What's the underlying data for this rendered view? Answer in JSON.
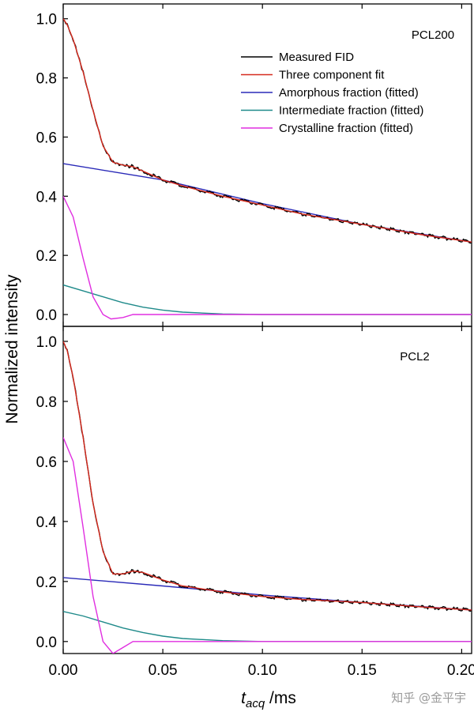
{
  "chart_data": {
    "type": "line",
    "ylabel": "Normalized intensity",
    "xlabel": {
      "main": "t",
      "sub": "acq",
      "unit": " /ms"
    },
    "xlim": [
      0.0,
      0.205
    ],
    "ylim": [
      -0.04,
      1.05
    ],
    "xticks": [
      "0.00",
      "0.05",
      "0.10",
      "0.15",
      "0.20"
    ],
    "yticks": [
      "0.0",
      "0.2",
      "0.4",
      "0.6",
      "0.8",
      "1.0"
    ],
    "legend": {
      "placement": "top-right of upper panel",
      "entries": [
        {
          "label": "Measured FID",
          "color": "#000000"
        },
        {
          "label": "Three component fit",
          "color": "#d62a1e"
        },
        {
          "label": "Amorphous fraction (fitted)",
          "color": "#2a2ab8"
        },
        {
          "label": "Intermediate fraction (fitted)",
          "color": "#1f8a8a"
        },
        {
          "label": "Crystalline fraction (fitted)",
          "color": "#e02ee0"
        }
      ]
    },
    "panels": [
      {
        "label": "PCL200",
        "series": [
          {
            "name": "Measured FID",
            "color": "#000000",
            "x": [
              0.0,
              0.002,
              0.005,
              0.01,
              0.015,
              0.02,
              0.025,
              0.03,
              0.035,
              0.04,
              0.05,
              0.06,
              0.08,
              0.1,
              0.12,
              0.15,
              0.18,
              0.205
            ],
            "y": [
              1.0,
              0.98,
              0.93,
              0.82,
              0.69,
              0.57,
              0.515,
              0.505,
              0.5,
              0.485,
              0.455,
              0.435,
              0.4,
              0.37,
              0.34,
              0.305,
              0.27,
              0.245
            ]
          },
          {
            "name": "Three component fit",
            "color": "#d62a1e",
            "x": [
              0.0,
              0.002,
              0.005,
              0.01,
              0.015,
              0.02,
              0.025,
              0.03,
              0.035,
              0.04,
              0.05,
              0.06,
              0.08,
              0.1,
              0.12,
              0.15,
              0.18,
              0.205
            ],
            "y": [
              1.0,
              0.98,
              0.93,
              0.82,
              0.69,
              0.57,
              0.515,
              0.505,
              0.5,
              0.485,
              0.455,
              0.435,
              0.4,
              0.37,
              0.34,
              0.305,
              0.27,
              0.245
            ]
          },
          {
            "name": "Amorphous fraction (fitted)",
            "color": "#2a2ab8",
            "x": [
              0.0,
              0.05,
              0.1,
              0.15,
              0.205
            ],
            "y": [
              0.51,
              0.455,
              0.375,
              0.305,
              0.245
            ]
          },
          {
            "name": "Intermediate fraction (fitted)",
            "color": "#1f8a8a",
            "x": [
              0.0,
              0.01,
              0.02,
              0.03,
              0.04,
              0.05,
              0.06,
              0.08,
              0.1,
              0.205
            ],
            "y": [
              0.1,
              0.08,
              0.06,
              0.04,
              0.025,
              0.015,
              0.008,
              0.002,
              0.0,
              0.0
            ]
          },
          {
            "name": "Crystalline fraction (fitted)",
            "color": "#e02ee0",
            "x": [
              0.0,
              0.005,
              0.01,
              0.015,
              0.02,
              0.024,
              0.03,
              0.035,
              0.04,
              0.05,
              0.205
            ],
            "y": [
              0.4,
              0.33,
              0.19,
              0.06,
              0.0,
              -0.015,
              -0.01,
              0.0,
              0.0,
              0.0,
              0.0
            ]
          }
        ]
      },
      {
        "label": "PCL2",
        "series": [
          {
            "name": "Measured FID",
            "color": "#000000",
            "x": [
              0.0,
              0.002,
              0.005,
              0.01,
              0.015,
              0.02,
              0.025,
              0.03,
              0.035,
              0.04,
              0.05,
              0.06,
              0.08,
              0.1,
              0.12,
              0.15,
              0.18,
              0.205
            ],
            "y": [
              1.0,
              0.97,
              0.88,
              0.68,
              0.46,
              0.3,
              0.225,
              0.225,
              0.235,
              0.23,
              0.205,
              0.185,
              0.165,
              0.15,
              0.14,
              0.13,
              0.115,
              0.105
            ]
          },
          {
            "name": "Three component fit",
            "color": "#d62a1e",
            "x": [
              0.0,
              0.002,
              0.005,
              0.01,
              0.015,
              0.02,
              0.025,
              0.03,
              0.035,
              0.04,
              0.05,
              0.06,
              0.08,
              0.1,
              0.12,
              0.15,
              0.18,
              0.205
            ],
            "y": [
              1.0,
              0.97,
              0.88,
              0.68,
              0.46,
              0.3,
              0.225,
              0.225,
              0.235,
              0.23,
              0.205,
              0.185,
              0.165,
              0.15,
              0.14,
              0.13,
              0.115,
              0.105
            ]
          },
          {
            "name": "Amorphous fraction (fitted)",
            "color": "#2a2ab8",
            "x": [
              0.0,
              0.05,
              0.1,
              0.15,
              0.205
            ],
            "y": [
              0.213,
              0.185,
              0.155,
              0.13,
              0.105
            ]
          },
          {
            "name": "Intermediate fraction (fitted)",
            "color": "#1f8a8a",
            "x": [
              0.0,
              0.01,
              0.02,
              0.03,
              0.04,
              0.05,
              0.06,
              0.08,
              0.1,
              0.205
            ],
            "y": [
              0.1,
              0.085,
              0.065,
              0.045,
              0.03,
              0.018,
              0.01,
              0.003,
              0.0,
              0.0
            ]
          },
          {
            "name": "Crystalline fraction (fitted)",
            "color": "#e02ee0",
            "x": [
              0.0,
              0.005,
              0.01,
              0.015,
              0.02,
              0.025,
              0.03,
              0.035,
              0.04,
              0.05,
              0.205
            ],
            "y": [
              0.68,
              0.6,
              0.38,
              0.15,
              0.0,
              -0.04,
              -0.02,
              0.0,
              0.0,
              0.0,
              0.0
            ]
          }
        ]
      }
    ]
  },
  "watermark": "知乎 @金平宇"
}
